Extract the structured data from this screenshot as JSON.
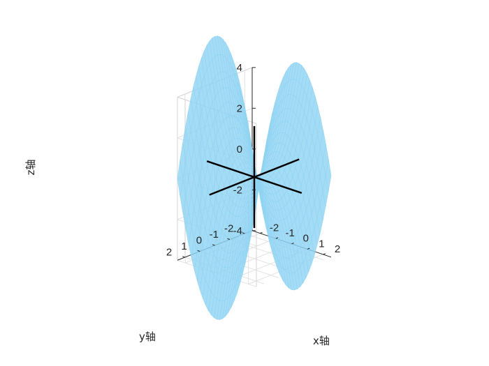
{
  "chart_data": {
    "type": "surface3d",
    "function": "z = x^2 - y^2 (saddle surface)",
    "x": {
      "range": [
        -2.5,
        2.5
      ],
      "ticks": [
        -2,
        -1,
        0,
        1,
        2
      ],
      "label": "x轴"
    },
    "y": {
      "range": [
        -2.5,
        2.5
      ],
      "ticks": [
        -2,
        -1,
        0,
        1,
        2
      ],
      "label": "y轴"
    },
    "z": {
      "range": [
        -4,
        4
      ],
      "ticks": [
        -4,
        -2,
        0,
        2,
        4
      ],
      "label": "z轴"
    },
    "grid": true,
    "surface_color": "#8fd3f2",
    "surface_opacity": 0.8,
    "coordinate_lines": [
      {
        "name": "x-line",
        "from": [
          -3,
          0,
          0
        ],
        "to": [
          3,
          0,
          0
        ]
      },
      {
        "name": "y-line",
        "from": [
          0,
          -3,
          0
        ],
        "to": [
          0,
          3,
          0
        ]
      },
      {
        "name": "z-line",
        "from": [
          0,
          0,
          -2.5
        ],
        "to": [
          0,
          0,
          2.5
        ]
      }
    ],
    "line_color": "#000000"
  }
}
